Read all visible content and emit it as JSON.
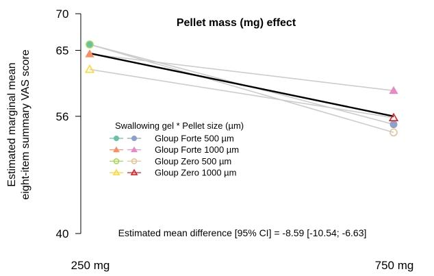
{
  "chart_data": {
    "type": "line",
    "title": "Pellet mass (mg) effect",
    "xlabel": "",
    "ylabel": [
      "Estimated marginal mean",
      "eight-item summary VAS score"
    ],
    "categories": [
      "250 mg",
      "750 mg"
    ],
    "y_ticks": [
      "40",
      "56",
      "65",
      "70"
    ],
    "ylim": [
      40,
      70
    ],
    "legend_title": "Swallowing gel * Pellet size (µm)",
    "legend_placement": "center-left",
    "legend_rows": [
      {
        "label": "Gloup Forte 500 µm",
        "colors": [
          "#66c2a5",
          "#8da0cb"
        ],
        "marker": "dot"
      },
      {
        "label": "Gloup Forte  1000 µm",
        "colors": [
          "#fc8d62",
          "#e78ac3"
        ],
        "marker": "triangle"
      },
      {
        "label": "Gloup Zero 500 µm",
        "colors": [
          "#a6d854",
          "#e5c494"
        ],
        "marker": "circle-open"
      },
      {
        "label": "Gloup Zero 1000 µm",
        "colors": [
          "#ffd92f",
          "#e41a1c"
        ],
        "marker": "triangle-open"
      }
    ],
    "series": [
      {
        "name": "Gloup Forte 500 µm",
        "values": [
          65.8,
          54.9
        ],
        "start_color": "#66c2a5",
        "end_color": "#8da0cb",
        "marker": "dot"
      },
      {
        "name": "Gloup Forte  1000 µm",
        "values": [
          64.5,
          59.5
        ],
        "start_color": "#fc8d62",
        "end_color": "#e78ac3",
        "marker": "triangle"
      },
      {
        "name": "Gloup Zero 500 µm",
        "values": [
          65.8,
          53.8
        ],
        "start_color": "#a6d854",
        "end_color": "#e5c494",
        "marker": "circle-open"
      },
      {
        "name": "Gloup Zero 1000 µm",
        "values": [
          62.4,
          55.8
        ],
        "start_color": "#ffd92f",
        "end_color": "#e41a1c",
        "marker": "triangle-open"
      }
    ],
    "mean_line": {
      "values": [
        64.6,
        56.0
      ],
      "color": "#000000"
    },
    "individual_line_color": "#cccccc",
    "annotation": "Estimated mean difference [95% CI] = -8.59 [-10.54; -6.63]",
    "grid": false
  }
}
